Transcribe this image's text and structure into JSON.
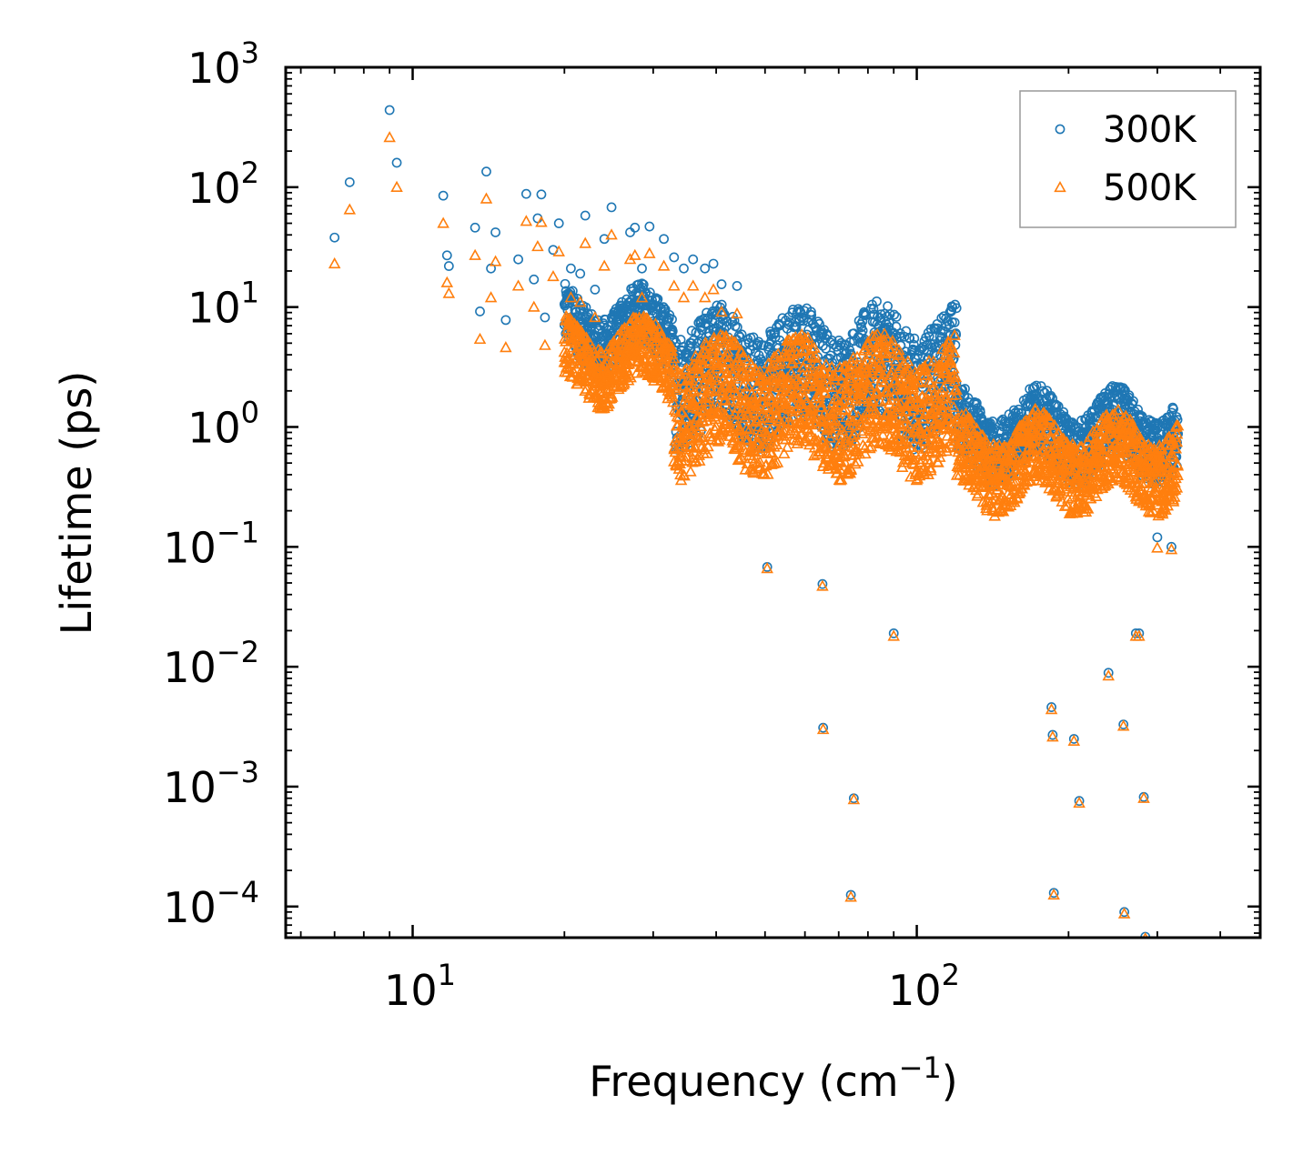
{
  "chart_data": {
    "type": "scatter",
    "xscale": "log",
    "yscale": "log",
    "xlim": [
      5.6,
      480
    ],
    "ylim": [
      5.5e-05,
      1000
    ],
    "xlabel": "Frequency (cm",
    "xlabel_sup": "−1",
    "xlabel_end": ")",
    "ylabel": "Lifetime (ps)",
    "legend_position": "top-right",
    "x_ticks": [
      {
        "value": 10,
        "base": "10",
        "exp": "1"
      },
      {
        "value": 100,
        "base": "10",
        "exp": "2"
      }
    ],
    "y_ticks": [
      {
        "value": 0.0001,
        "base": "10",
        "exp": "−4"
      },
      {
        "value": 0.001,
        "base": "10",
        "exp": "−3"
      },
      {
        "value": 0.01,
        "base": "10",
        "exp": "−2"
      },
      {
        "value": 0.1,
        "base": "10",
        "exp": "−1"
      },
      {
        "value": 1,
        "base": "10",
        "exp": "0"
      },
      {
        "value": 10,
        "base": "10",
        "exp": "1"
      },
      {
        "value": 100,
        "base": "10",
        "exp": "2"
      },
      {
        "value": 1000,
        "base": "10",
        "exp": "3"
      }
    ],
    "series": [
      {
        "name": "300K",
        "marker": "circle",
        "color": "#1f77b4",
        "points": [
          [
            7.0,
            38
          ],
          [
            7.5,
            110
          ],
          [
            9.0,
            440
          ],
          [
            9.3,
            160
          ],
          [
            11.5,
            85
          ],
          [
            11.7,
            27
          ],
          [
            11.8,
            22
          ],
          [
            13.3,
            46
          ],
          [
            13.6,
            9.2
          ],
          [
            14.0,
            135
          ],
          [
            14.3,
            21
          ],
          [
            14.6,
            42
          ],
          [
            15.3,
            7.8
          ],
          [
            16.2,
            25
          ],
          [
            16.8,
            88
          ],
          [
            17.4,
            17
          ],
          [
            17.7,
            55
          ],
          [
            18.0,
            87
          ],
          [
            18.3,
            8.2
          ],
          [
            19.0,
            30
          ],
          [
            19.5,
            50
          ],
          [
            20.0,
            7.1
          ],
          [
            20.6,
            21
          ],
          [
            21.5,
            19
          ],
          [
            22.0,
            58
          ],
          [
            23.0,
            14
          ],
          [
            24.0,
            37
          ],
          [
            24.8,
            68
          ],
          [
            26.0,
            11
          ],
          [
            27.0,
            42
          ],
          [
            27.6,
            46
          ],
          [
            28.5,
            21
          ],
          [
            29.5,
            47
          ],
          [
            30.5,
            8.8
          ],
          [
            31.5,
            37
          ],
          [
            33.0,
            26
          ],
          [
            34.5,
            21
          ],
          [
            36.0,
            25
          ],
          [
            38.0,
            21
          ],
          [
            39.5,
            23
          ],
          [
            41.0,
            15.5
          ],
          [
            44.0,
            15
          ],
          [
            48.5,
            0.68
          ],
          [
            49.0,
            1.7
          ],
          [
            50.0,
            1.05
          ],
          [
            50.5,
            0.068
          ],
          [
            65.0,
            0.049
          ],
          [
            65.2,
            0.0031
          ],
          [
            74.0,
            0.000125
          ],
          [
            75.0,
            0.0008
          ],
          [
            90.0,
            0.019
          ],
          [
            185,
            0.0046
          ],
          [
            186,
            0.0027
          ],
          [
            187,
            0.00013
          ],
          [
            205,
            0.0025
          ],
          [
            210,
            0.00076
          ],
          [
            240,
            0.0089
          ],
          [
            257,
            0.0033
          ],
          [
            258,
            9e-05
          ],
          [
            272,
            0.019
          ],
          [
            276,
            0.019
          ],
          [
            282,
            0.00082
          ],
          [
            284,
            5.6e-05
          ],
          [
            300,
            0.12
          ],
          [
            320,
            0.1
          ],
          [
            328,
            0.47
          ]
        ],
        "bands": [
          {
            "x": [
              20,
              33
            ],
            "y": [
              0.55,
              1.05
            ]
          },
          {
            "x": [
              33,
              120
            ],
            "y": [
              -0.05,
              0.9
            ]
          },
          {
            "x": [
              120,
              330
            ],
            "y": [
              -0.35,
              0.2
            ]
          }
        ]
      },
      {
        "name": "500K",
        "marker": "triangle",
        "color": "#ff7f0e",
        "points": [
          [
            7.0,
            23
          ],
          [
            7.5,
            65
          ],
          [
            9.0,
            260
          ],
          [
            9.3,
            100
          ],
          [
            11.5,
            50
          ],
          [
            11.7,
            16
          ],
          [
            11.8,
            13
          ],
          [
            13.3,
            27
          ],
          [
            13.6,
            5.4
          ],
          [
            14.0,
            80
          ],
          [
            14.3,
            12
          ],
          [
            14.6,
            24
          ],
          [
            15.3,
            4.6
          ],
          [
            16.2,
            15
          ],
          [
            16.8,
            52
          ],
          [
            17.4,
            10
          ],
          [
            17.7,
            32
          ],
          [
            18.0,
            51
          ],
          [
            18.3,
            4.8
          ],
          [
            19.0,
            18
          ],
          [
            19.5,
            29
          ],
          [
            20.0,
            4.2
          ],
          [
            20.6,
            12
          ],
          [
            21.5,
            11
          ],
          [
            22.0,
            34
          ],
          [
            23.0,
            8.2
          ],
          [
            24.0,
            22
          ],
          [
            24.8,
            40
          ],
          [
            26.0,
            6.4
          ],
          [
            27.0,
            25
          ],
          [
            27.6,
            27
          ],
          [
            28.5,
            12
          ],
          [
            29.5,
            28
          ],
          [
            30.5,
            5.2
          ],
          [
            31.5,
            22
          ],
          [
            33.0,
            15
          ],
          [
            34.5,
            12
          ],
          [
            36.0,
            15
          ],
          [
            38.0,
            12
          ],
          [
            39.5,
            14
          ],
          [
            41.0,
            9.1
          ],
          [
            44.0,
            8.8
          ],
          [
            48.5,
            0.62
          ],
          [
            49.0,
            1.4
          ],
          [
            50.0,
            0.9
          ],
          [
            50.5,
            0.066
          ],
          [
            65.0,
            0.047
          ],
          [
            65.2,
            0.003
          ],
          [
            74.0,
            0.00012
          ],
          [
            75.0,
            0.00078
          ],
          [
            90.0,
            0.018
          ],
          [
            185,
            0.0044
          ],
          [
            186,
            0.0026
          ],
          [
            187,
            0.000125
          ],
          [
            205,
            0.0024
          ],
          [
            210,
            0.00073
          ],
          [
            240,
            0.0084
          ],
          [
            257,
            0.0032
          ],
          [
            258,
            8.7e-05
          ],
          [
            272,
            0.018
          ],
          [
            276,
            0.018
          ],
          [
            282,
            0.0008
          ],
          [
            284,
            5.4e-05
          ],
          [
            300,
            0.098
          ],
          [
            320,
            0.095
          ],
          [
            328,
            0.31
          ]
        ],
        "bands": [
          {
            "x": [
              20,
              33
            ],
            "y": [
              0.3,
              0.8
            ]
          },
          {
            "x": [
              33,
              120
            ],
            "y": [
              -0.3,
              0.65
            ]
          },
          {
            "x": [
              120,
              330
            ],
            "y": [
              -0.6,
              0.0
            ]
          }
        ]
      }
    ]
  }
}
